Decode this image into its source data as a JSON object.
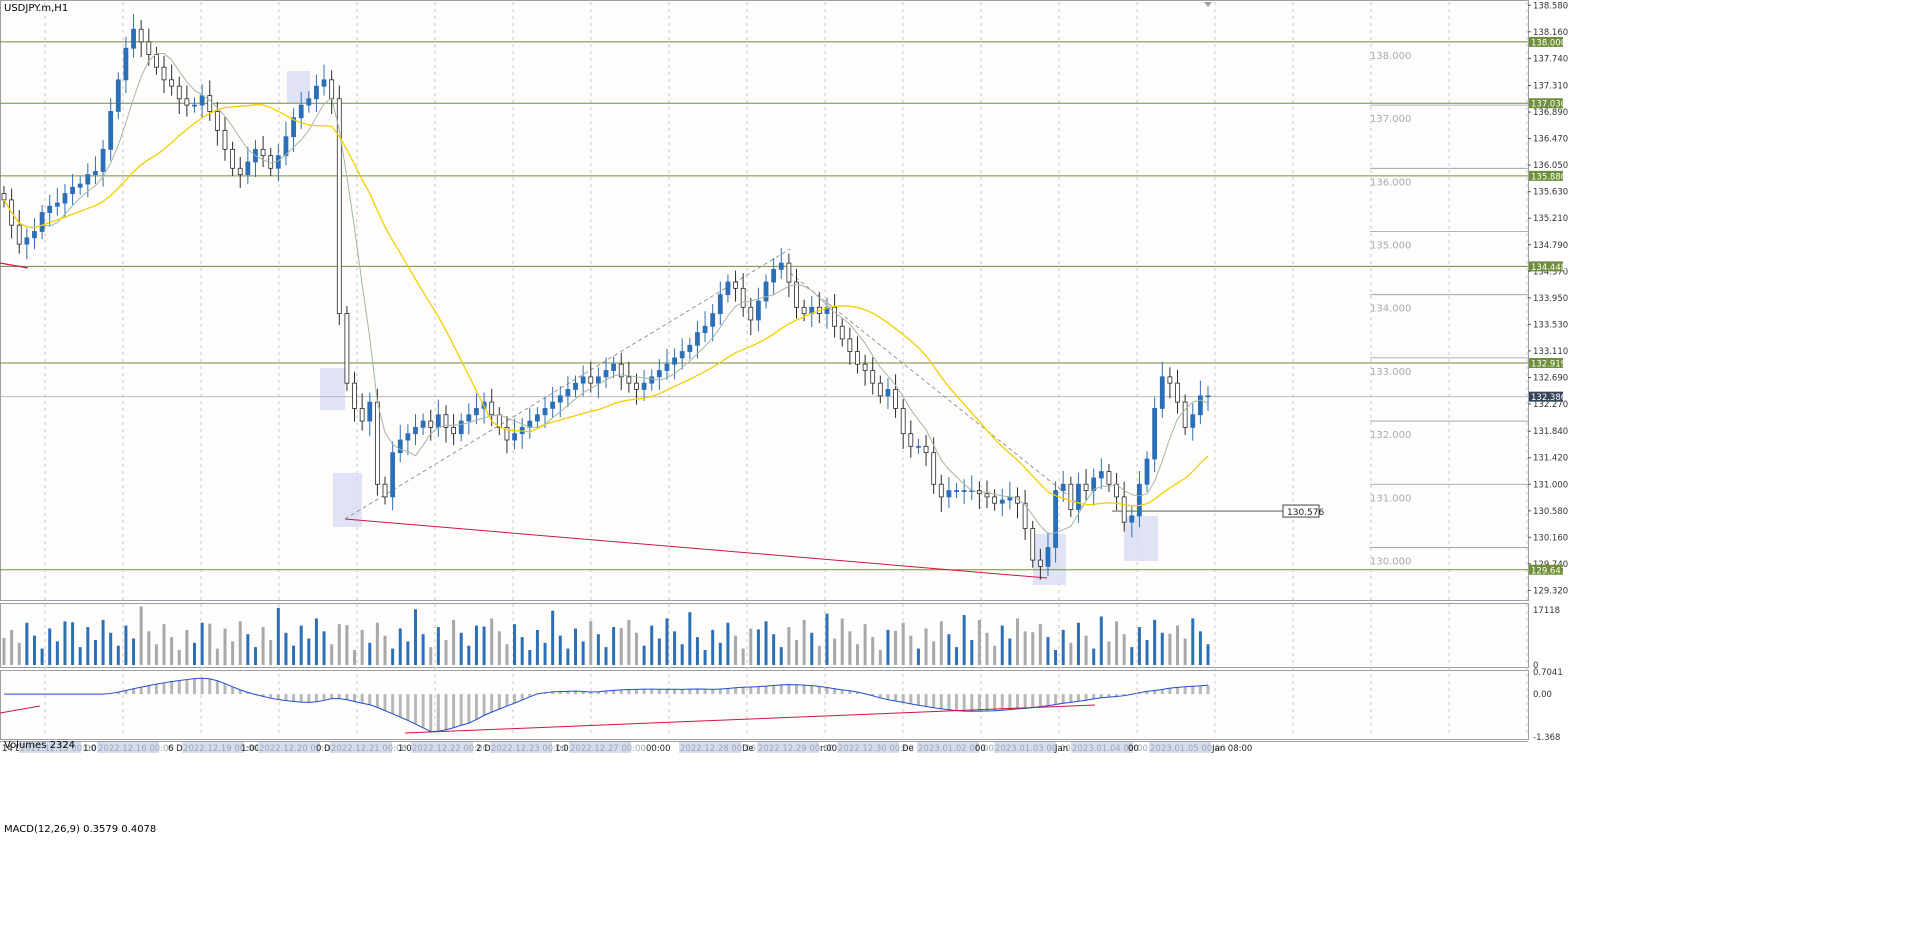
{
  "window": {
    "symbol_title": "USDJPY.m,H1",
    "volumes_label": "Volumes 2324",
    "macd_label": "MACD(12,26,9) 0.3579 0.4078",
    "colors": {
      "bull": "#2a6fb8",
      "bear": "#2b2b2b",
      "grid": "#c8c8c8",
      "level": "#6f8f3a",
      "ma_slow": "#f0d000",
      "ma_fast": "#9fb8a6",
      "trend_red": "#d0144a",
      "channel": "#808080",
      "macd_line": "#1f4fd0",
      "macd_hist": "#b8b8b8",
      "highlight": "#d8dcf5",
      "price_tag": "#6f8f3a"
    }
  },
  "chart_data": [
    {
      "type": "candlestick",
      "title": "USDJPY.m,H1",
      "y_axis_ticks": [
        "138.580",
        "138.160",
        "137.740",
        "137.310",
        "136.890",
        "136.470",
        "136.050",
        "135.630",
        "135.210",
        "134.790",
        "134.370",
        "133.950",
        "133.530",
        "133.110",
        "132.690",
        "132.270",
        "131.840",
        "131.420",
        "131.000",
        "130.580",
        "130.160",
        "129.740",
        "129.320"
      ],
      "ylim": [
        129.2,
        138.6
      ],
      "price_levels": [
        {
          "price": 138.0,
          "tag": "138.000"
        },
        {
          "price": 137.03,
          "tag": "137.030"
        },
        {
          "price": 135.88,
          "tag": "135.880"
        },
        {
          "price": 134.448,
          "tag": "134.448"
        },
        {
          "price": 132.919,
          "tag": "132.919"
        },
        {
          "price": 129.647,
          "tag": "129.647"
        }
      ],
      "current_price": {
        "price": 132.386,
        "tag": "132.386"
      },
      "round_levels": [
        {
          "price": 138.0,
          "label": "138.000"
        },
        {
          "price": 137.0,
          "label": "137.000"
        },
        {
          "price": 136.0,
          "label": "136.000"
        },
        {
          "price": 135.0,
          "label": "135.000"
        },
        {
          "price": 134.0,
          "label": "134.000"
        },
        {
          "price": 133.0,
          "label": "133.000"
        },
        {
          "price": 132.0,
          "label": "132.000"
        },
        {
          "price": 131.0,
          "label": "131.000"
        },
        {
          "price": 130.0,
          "label": "130.000"
        }
      ],
      "horizontal_ray": {
        "price": 130.576,
        "label": "130.576"
      },
      "x_tick_labels": [
        "14 D",
        "2022.12.15 00:00",
        "1:00",
        "2022.12.16 00:00",
        "6 D",
        "2022.12.19 00:00",
        "1:00",
        "2022.12.20 00:00",
        "0 D",
        "2022.12.21 00:00",
        "1:00",
        "2022.12.22 00:00",
        "2 D",
        "2022.12.23 00:00",
        "1:00",
        "2022.12.27 00:00",
        "00:00",
        "2022.12.28 00:00",
        "De",
        "2022.12.29 00:00",
        "r:00",
        "2022.12.30 00:00",
        "De",
        "2023.01.02 00:00",
        "00",
        "2023.01.03 00:00",
        "Jan",
        "2023.01.04 00:00",
        "00",
        "2023.01.05 00:00",
        "Jan 08:00"
      ],
      "closes": [
        135.5,
        135.1,
        134.8,
        134.9,
        135.0,
        135.3,
        135.4,
        135.45,
        135.6,
        135.7,
        135.75,
        135.9,
        135.95,
        136.3,
        136.9,
        137.4,
        137.9,
        138.2,
        138.0,
        137.8,
        137.6,
        137.4,
        137.3,
        137.1,
        137.0,
        137.0,
        137.15,
        136.9,
        136.6,
        136.3,
        136.0,
        135.9,
        136.1,
        136.3,
        136.2,
        136.0,
        136.2,
        136.5,
        136.8,
        137.0,
        137.1,
        137.3,
        137.4,
        137.1,
        133.7,
        132.6,
        132.2,
        132.0,
        132.3,
        131.0,
        130.8,
        131.5,
        131.7,
        131.8,
        131.9,
        132.0,
        131.9,
        132.1,
        131.9,
        131.8,
        132.0,
        132.1,
        132.2,
        132.3,
        132.1,
        131.9,
        131.7,
        131.8,
        131.9,
        132.0,
        132.1,
        132.2,
        132.3,
        132.4,
        132.5,
        132.6,
        132.7,
        132.6,
        132.7,
        132.8,
        132.9,
        132.7,
        132.6,
        132.5,
        132.6,
        132.7,
        132.8,
        132.9,
        133.0,
        133.1,
        133.2,
        133.4,
        133.5,
        133.7,
        134.0,
        134.2,
        134.1,
        133.8,
        133.6,
        133.9,
        134.2,
        134.4,
        134.5,
        134.2,
        133.8,
        133.7,
        133.8,
        133.7,
        133.8,
        133.5,
        133.3,
        133.1,
        132.9,
        132.8,
        132.6,
        132.4,
        132.5,
        132.2,
        131.8,
        131.6,
        131.6,
        131.5,
        131.0,
        130.8,
        130.9,
        130.9,
        130.9,
        130.9,
        130.85,
        130.8,
        130.7,
        130.75,
        130.8,
        130.7,
        130.3,
        129.8,
        129.7,
        130.0,
        130.9,
        131.0,
        130.6,
        131.0,
        130.9,
        131.1,
        131.2,
        131.0,
        130.8,
        130.4,
        130.5,
        131.0,
        131.4,
        132.2,
        132.7,
        132.6,
        132.3,
        131.9,
        132.1,
        132.4,
        132.4
      ]
    },
    {
      "type": "bar",
      "title": "Volumes 2324",
      "y_axis_ticks": [
        "17118",
        "0"
      ],
      "ylim": [
        0,
        17118
      ]
    },
    {
      "type": "bar",
      "title": "MACD(12,26,9) 0.3579 0.4078",
      "y_axis_ticks": [
        "0.7041",
        "0.00",
        "-1.368"
      ],
      "ylim": [
        -1.368,
        0.7041
      ]
    }
  ]
}
